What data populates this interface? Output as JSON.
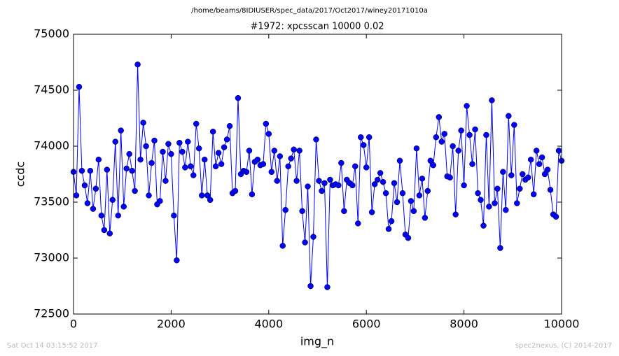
{
  "chart_data": {
    "type": "line",
    "suptitle": "/home/beams/8IDIUSER/spec_data/2017/Oct2017/winey20171010a",
    "title": "#1972: xpcsscan 10000 0.02",
    "xlabel": "img_n",
    "ylabel": "ccdc",
    "footer_left": "Sat Oct 14 03:15:52 2017",
    "footer_right": "spec2nexus, (C) 2014-2017",
    "xlim": [
      0,
      10000
    ],
    "xticks": [
      0,
      2000,
      4000,
      6000,
      8000,
      10000
    ],
    "ylim": [
      72500,
      75000
    ],
    "yticks": [
      72500,
      73000,
      73500,
      74000,
      74500,
      75000
    ],
    "x": [
      0,
      57,
      114,
      171,
      229,
      286,
      343,
      400,
      457,
      514,
      571,
      629,
      686,
      743,
      800,
      857,
      914,
      971,
      1029,
      1086,
      1143,
      1200,
      1257,
      1314,
      1371,
      1429,
      1486,
      1543,
      1600,
      1657,
      1714,
      1771,
      1829,
      1886,
      1943,
      2000,
      2057,
      2114,
      2171,
      2229,
      2286,
      2343,
      2400,
      2457,
      2514,
      2571,
      2629,
      2686,
      2743,
      2800,
      2857,
      2914,
      2971,
      3029,
      3086,
      3143,
      3200,
      3257,
      3314,
      3371,
      3429,
      3486,
      3543,
      3600,
      3657,
      3714,
      3771,
      3829,
      3886,
      3943,
      4000,
      4057,
      4114,
      4171,
      4229,
      4286,
      4343,
      4400,
      4457,
      4514,
      4571,
      4629,
      4686,
      4743,
      4800,
      4857,
      4914,
      4971,
      5029,
      5086,
      5143,
      5200,
      5257,
      5314,
      5371,
      5429,
      5486,
      5543,
      5600,
      5657,
      5714,
      5771,
      5829,
      5886,
      5943,
      6000,
      6057,
      6114,
      6171,
      6229,
      6286,
      6343,
      6400,
      6457,
      6514,
      6571,
      6629,
      6686,
      6743,
      6800,
      6857,
      6914,
      6971,
      7029,
      7086,
      7143,
      7200,
      7257,
      7314,
      7371,
      7429,
      7486,
      7543,
      7600,
      7657,
      7714,
      7771,
      7829,
      7886,
      7943,
      8000,
      8057,
      8114,
      8171,
      8229,
      8286,
      8343,
      8400,
      8457,
      8514,
      8571,
      8629,
      8686,
      8743,
      8800,
      8857,
      8914,
      8971,
      9029,
      9086,
      9143,
      9200,
      9257,
      9314,
      9371,
      9429,
      9486,
      9543,
      9600,
      9657,
      9714,
      9771,
      9829,
      9886,
      9943,
      10000
    ],
    "series": [
      {
        "name": "ccdc",
        "color": "#0000ff",
        "values": [
          73770,
          73560,
          74530,
          73780,
          73650,
          73490,
          73780,
          73440,
          73620,
          73880,
          73380,
          73250,
          73790,
          73220,
          73520,
          74040,
          73380,
          74140,
          73460,
          73800,
          73930,
          73780,
          73600,
          74730,
          73880,
          74210,
          74000,
          73560,
          73850,
          74050,
          73480,
          73510,
          73950,
          73690,
          74020,
          73930,
          73380,
          72980,
          74030,
          73950,
          73810,
          74040,
          73820,
          73740,
          74200,
          73980,
          73560,
          73880,
          73560,
          73520,
          74130,
          73820,
          73940,
          73840,
          73990,
          74060,
          74180,
          73580,
          73600,
          74430,
          73750,
          73780,
          73770,
          73960,
          73570,
          73860,
          73880,
          73830,
          73840,
          74200,
          74110,
          73770,
          73960,
          73690,
          73910,
          73110,
          73430,
          73820,
          73890,
          73970,
          73690,
          73960,
          73420,
          73140,
          73640,
          72750,
          73190,
          74060,
          73690,
          73600,
          73670,
          72740,
          73700,
          73650,
          73660,
          73650,
          73850,
          73420,
          73700,
          73670,
          73650,
          73820,
          73310,
          74080,
          74010,
          73810,
          74080,
          73410,
          73660,
          73700,
          73760,
          73680,
          73580,
          73260,
          73330,
          73670,
          73500,
          73870,
          73580,
          73210,
          73180,
          73510,
          73420,
          73980,
          73560,
          73710,
          73360,
          73600,
          73870,
          73830,
          74080,
          74260,
          74040,
          74110,
          73730,
          73720,
          74000,
          73390,
          73960,
          74140,
          73650,
          74360,
          74100,
          73840,
          74150,
          73580,
          73520,
          73290,
          74100,
          73460,
          74410,
          73490,
          73620,
          73090,
          73770,
          73430,
          74270,
          73740,
          74190,
          73490,
          73620,
          73750,
          73700,
          73720,
          73880,
          73570,
          73960,
          73840,
          73900,
          73750,
          73790,
          73610,
          73390,
          73370,
          73960,
          73870
        ]
      }
    ]
  }
}
